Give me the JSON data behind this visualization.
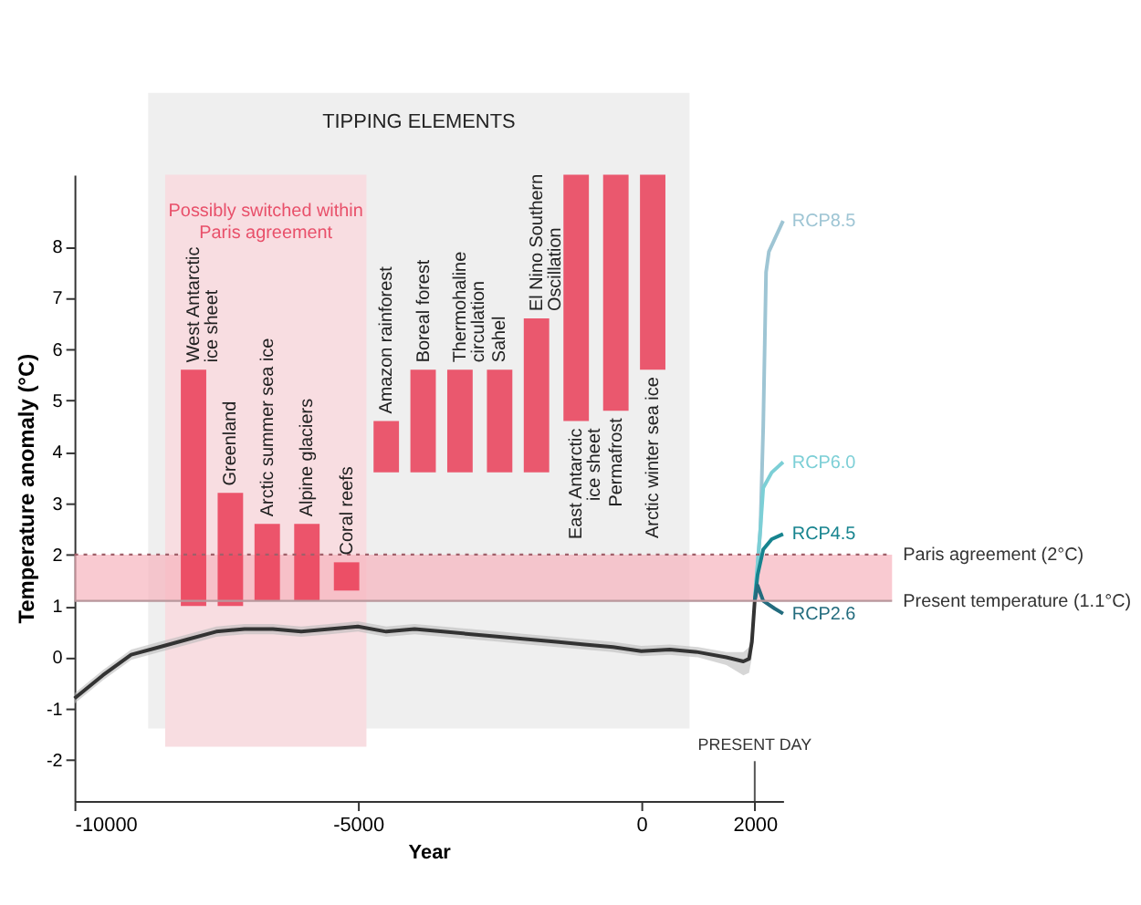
{
  "chart_data": {
    "type": "line",
    "xlabel": "Year",
    "ylabel": "Temperature anomaly (°C)",
    "xlim": [
      -10000,
      2500
    ],
    "ylim": [
      -2.8,
      9.4
    ],
    "xticks": [
      -10000,
      -5000,
      0,
      2000
    ],
    "yticks": [
      -2,
      -1,
      0,
      1,
      2,
      3,
      4,
      5,
      6,
      7,
      8
    ],
    "grid": false,
    "series": [
      {
        "type": "bar",
        "color": "#e8324e",
        "x": [
          -7900,
          -7250,
          -6600,
          -5900,
          -5200,
          -4500,
          -3850,
          -3200,
          -2500,
          -1850,
          -1150,
          -450,
          200
        ],
        "base": [
          1.0,
          1.0,
          1.1,
          1.1,
          1.3,
          3.6,
          3.6,
          3.6,
          3.6,
          3.6,
          4.6,
          4.8,
          5.6
        ],
        "values": [
          4.6,
          2.2,
          1.5,
          1.5,
          0.55,
          1.0,
          2.0,
          2.0,
          2.0,
          3.0,
          4.8,
          4.6,
          3.8
        ]
      },
      {
        "color": "#333333",
        "x": [
          -10000,
          -9500,
          -9000,
          -8500,
          -8000,
          -7500,
          -7000,
          -6500,
          -6000,
          -5500,
          -5000,
          -4500,
          -4000,
          -3500,
          -3000,
          -2500,
          -2000,
          -1500,
          -1000,
          -500,
          0,
          500,
          1000,
          1500,
          1800,
          1900,
          1950,
          2000
        ],
        "values": [
          -0.8,
          -0.35,
          0.05,
          0.2,
          0.35,
          0.5,
          0.55,
          0.55,
          0.5,
          0.55,
          0.6,
          0.5,
          0.55,
          0.5,
          0.45,
          0.4,
          0.35,
          0.3,
          0.25,
          0.2,
          0.12,
          0.15,
          0.1,
          0.0,
          -0.08,
          -0.03,
          0.3,
          1.1
        ],
        "lower": [
          -0.9,
          -0.45,
          -0.05,
          0.1,
          0.25,
          0.4,
          0.45,
          0.45,
          0.4,
          0.45,
          0.5,
          0.4,
          0.45,
          0.4,
          0.35,
          0.3,
          0.25,
          0.2,
          0.15,
          0.1,
          0.02,
          0.05,
          0.0,
          -0.15,
          -0.35,
          -0.3,
          0.0,
          1.0
        ],
        "upper": [
          -0.7,
          -0.25,
          0.15,
          0.3,
          0.45,
          0.6,
          0.65,
          0.65,
          0.6,
          0.65,
          0.7,
          0.6,
          0.65,
          0.6,
          0.55,
          0.5,
          0.45,
          0.4,
          0.35,
          0.3,
          0.22,
          0.25,
          0.2,
          0.1,
          0.1,
          0.2,
          0.6,
          1.2
        ]
      },
      {
        "type": "line",
        "name": "RCP8.5",
        "color": "#9ec5d4",
        "x": [
          2000,
          2100,
          2150,
          2200,
          2250,
          2500
        ],
        "values": [
          1.1,
          2.5,
          4.5,
          7.5,
          7.9,
          8.5
        ]
      },
      {
        "type": "line",
        "name": "RCP6.0",
        "color": "#7ccfd6",
        "x": [
          2000,
          2100,
          2150,
          2300,
          2500
        ],
        "values": [
          1.1,
          2.5,
          3.3,
          3.6,
          3.8
        ]
      },
      {
        "type": "line",
        "name": "RCP4.5",
        "color": "#17848f",
        "x": [
          2000,
          2050,
          2150,
          2300,
          2500
        ],
        "values": [
          1.1,
          1.6,
          2.1,
          2.3,
          2.4
        ]
      },
      {
        "type": "line",
        "name": "RCP2.6",
        "color": "#236c7e",
        "x": [
          2000,
          2050,
          2150,
          2350,
          2500
        ],
        "values": [
          1.1,
          1.4,
          1.1,
          0.95,
          0.85
        ]
      }
    ],
    "bands": [
      {
        "axis": "x",
        "from": -8700,
        "to": 850,
        "label": "TIPPING ELEMENTS",
        "color": "#efefef"
      },
      {
        "axis": "x",
        "from": -8400,
        "to": -4850,
        "label": "Possibly switched within\nParis agreement",
        "color": "#f8dde1"
      },
      {
        "axis": "y",
        "from": 1.1,
        "to": 2.0,
        "color": "#f6b3bd"
      }
    ],
    "ref_lines": [
      {
        "axis": "y",
        "value": 2,
        "label": "Paris agreement (2°C)",
        "line_style": "dotted",
        "color": "#a0606a"
      },
      {
        "axis": "y",
        "value": 1.1,
        "label": "Present temperature (1.1°C)",
        "line_style": "solid",
        "color": "#b9979c"
      },
      {
        "axis": "x",
        "value": 2000,
        "label": "PRESENT DAY",
        "line_style": "solid",
        "color": "#555555"
      }
    ],
    "annotations": [
      {
        "text": "West Antarctic\nice sheet",
        "x": -7900,
        "y": 5.6
      },
      {
        "text": "Greenland",
        "x": -7250,
        "y": 3.2
      },
      {
        "text": "Arctic summer sea ice",
        "x": -6600,
        "y": 2.6
      },
      {
        "text": "Alpine glaciers",
        "x": -5900,
        "y": 2.6
      },
      {
        "text": "Coral reefs",
        "x": -5200,
        "y": 1.85
      },
      {
        "text": "Amazon rainforest",
        "x": -4500,
        "y": 4.6
      },
      {
        "text": "Boreal forest",
        "x": -3850,
        "y": 5.6
      },
      {
        "text": "Thermohaline\ncirculation",
        "x": -3200,
        "y": 5.6
      },
      {
        "text": "Sahel",
        "x": -2500,
        "y": 5.6
      },
      {
        "text": "El Nino Southern\nOscillation",
        "x": -1850,
        "y": 6.6
      },
      {
        "text": "East Antarctic\nice sheet",
        "x": -1150,
        "y": 4.6
      },
      {
        "text": "Permafrost",
        "x": -450,
        "y": 4.8
      },
      {
        "text": "Arctic winter sea ice",
        "x": 200,
        "y": 5.6
      }
    ]
  }
}
